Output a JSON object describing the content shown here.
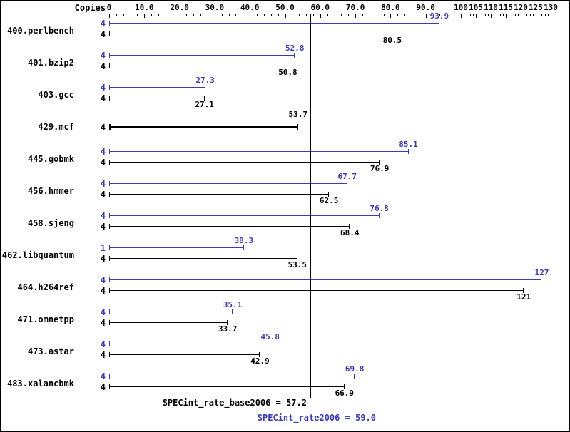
{
  "header": {
    "copies_label": "Copies"
  },
  "colors": {
    "peak": "#3c3cb0",
    "base": "#000000"
  },
  "chart_data": {
    "type": "bar",
    "orientation": "horizontal",
    "title": "",
    "xlabel": "",
    "ylabel": "Copies",
    "xlim": [
      0,
      130
    ],
    "grid": false,
    "x_axis": {
      "ticks": [
        {
          "value": 0,
          "label": "0"
        },
        {
          "value": 10,
          "label": "10.0"
        },
        {
          "value": 20,
          "label": "20.0"
        },
        {
          "value": 30,
          "label": "30.0"
        },
        {
          "value": 40,
          "label": "40.0"
        },
        {
          "value": 50,
          "label": "50.0"
        },
        {
          "value": 60,
          "label": "60.0"
        },
        {
          "value": 70,
          "label": "70.0"
        },
        {
          "value": 80,
          "label": "80.0"
        },
        {
          "value": 90,
          "label": "90.0"
        },
        {
          "value": 100,
          "label": "100"
        },
        {
          "value": 105,
          "label": "105"
        },
        {
          "value": 110,
          "label": "110"
        },
        {
          "value": 115,
          "label": "115"
        },
        {
          "value": 120,
          "label": "120"
        },
        {
          "value": 125,
          "label": "125"
        },
        {
          "value": 130,
          "label": "130"
        }
      ],
      "segments": [
        {
          "from": 0,
          "to": 100,
          "major_step": 10,
          "minor_step": 2
        },
        {
          "from": 100,
          "to": 130,
          "major_step": 5,
          "minor_step": 1
        }
      ]
    },
    "series": [
      {
        "name": "peak (SPECint_rate2006)",
        "color_key": "peak"
      },
      {
        "name": "base (SPECint_rate_base2006)",
        "color_key": "base"
      }
    ],
    "benchmarks": [
      {
        "name": "400.perlbench",
        "peak": {
          "copies": "4",
          "value": 93.9,
          "label": "93.9"
        },
        "base": {
          "copies": "4",
          "value": 80.5,
          "label": "80.5"
        }
      },
      {
        "name": "401.bzip2",
        "peak": {
          "copies": "4",
          "value": 52.8,
          "label": "52.8"
        },
        "base": {
          "copies": "4",
          "value": 50.8,
          "label": "50.8"
        }
      },
      {
        "name": "403.gcc",
        "peak": {
          "copies": "4",
          "value": 27.3,
          "label": "27.3"
        },
        "base": {
          "copies": "4",
          "value": 27.1,
          "label": "27.1"
        }
      },
      {
        "name": "429.mcf",
        "peak": null,
        "base": {
          "copies": "4",
          "value": 53.7,
          "label": "53.7"
        }
      },
      {
        "name": "445.gobmk",
        "peak": {
          "copies": "4",
          "value": 85.1,
          "label": "85.1"
        },
        "base": {
          "copies": "4",
          "value": 76.9,
          "label": "76.9"
        }
      },
      {
        "name": "456.hmmer",
        "peak": {
          "copies": "4",
          "value": 67.7,
          "label": "67.7"
        },
        "base": {
          "copies": "4",
          "value": 62.5,
          "label": "62.5"
        }
      },
      {
        "name": "458.sjeng",
        "peak": {
          "copies": "4",
          "value": 76.8,
          "label": "76.8"
        },
        "base": {
          "copies": "4",
          "value": 68.4,
          "label": "68.4"
        }
      },
      {
        "name": "462.libquantum",
        "peak": {
          "copies": "1",
          "value": 38.3,
          "label": "38.3"
        },
        "base": {
          "copies": "4",
          "value": 53.5,
          "label": "53.5"
        }
      },
      {
        "name": "464.h264ref",
        "peak": {
          "copies": "4",
          "value": 127,
          "label": "127"
        },
        "base": {
          "copies": "4",
          "value": 121,
          "label": "121"
        }
      },
      {
        "name": "471.omnetpp",
        "peak": {
          "copies": "4",
          "value": 35.1,
          "label": "35.1"
        },
        "base": {
          "copies": "4",
          "value": 33.7,
          "label": "33.7"
        }
      },
      {
        "name": "473.astar",
        "peak": {
          "copies": "4",
          "value": 45.8,
          "label": "45.8"
        },
        "base": {
          "copies": "4",
          "value": 42.9,
          "label": "42.9"
        }
      },
      {
        "name": "483.xalancbmk",
        "peak": {
          "copies": "4",
          "value": 69.8,
          "label": "69.8"
        },
        "base": {
          "copies": "4",
          "value": 66.9,
          "label": "66.9"
        }
      }
    ],
    "summary": {
      "base": {
        "label": "SPECint_rate_base2006 = 57.2",
        "value": 57.2
      },
      "peak": {
        "label": "SPECint_rate2006 = 59.0",
        "value": 59.0
      }
    }
  }
}
